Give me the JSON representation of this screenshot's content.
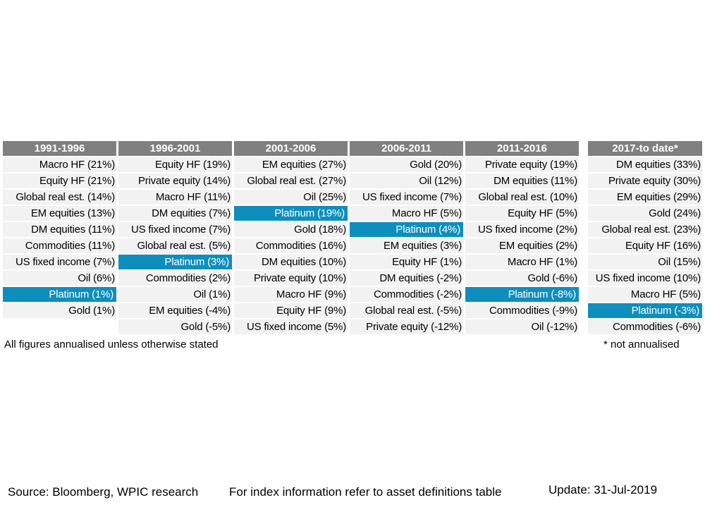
{
  "chart_data": {
    "type": "table",
    "highlight_color": "#0e8ebd",
    "header_color": "#808080",
    "cell_color": "#f2f2f2",
    "highlight_item": "Platinum",
    "columns": [
      {
        "header": "1991-1996",
        "cells": [
          "Macro HF (21%)",
          "Equity HF (21%)",
          "Global real est. (14%)",
          "EM equities (13%)",
          "DM equities (11%)",
          "Commodities (11%)",
          "US fixed income (7%)",
          "Oil (6%)",
          "Platinum (1%)",
          "Gold (1%)"
        ]
      },
      {
        "header": "1996-2001",
        "cells": [
          "Equity HF (19%)",
          "Private equity (14%)",
          "Macro HF (11%)",
          "DM equities (7%)",
          "US fixed income (7%)",
          "Global real est. (5%)",
          "Platinum (3%)",
          "Commodities (2%)",
          "Oil (1%)",
          "EM equities (-4%)",
          "Gold (-5%)"
        ]
      },
      {
        "header": "2001-2006",
        "cells": [
          "EM equities (27%)",
          "Global real est. (27%)",
          "Oil (25%)",
          "Platinum (19%)",
          "Gold (18%)",
          "Commodities (16%)",
          "DM equities (10%)",
          "Private equity (10%)",
          "Macro HF (9%)",
          "Equity HF (9%)",
          "US fixed income (5%)"
        ]
      },
      {
        "header": "2006-2011",
        "cells": [
          "Gold (20%)",
          "Oil (12%)",
          "US fixed income (7%)",
          "Macro HF (5%)",
          "Platinum (4%)",
          "EM equities (3%)",
          "Equity HF (1%)",
          "DM equities (-2%)",
          "Commodities (-2%)",
          "Global real est. (-5%)",
          "Private equity (-12%)"
        ]
      },
      {
        "header": "2011-2016",
        "cells": [
          "Private equity (19%)",
          "DM equities (11%)",
          "Global real est. (10%)",
          "Equity HF (5%)",
          "US fixed income (2%)",
          "EM equities (2%)",
          "Macro HF (1%)",
          "Gold (-6%)",
          "Platinum (-8%)",
          "Commodities (-9%)",
          "Oil (-12%)"
        ]
      },
      {
        "header": "2017-to date*",
        "cells": [
          "DM equities (33%)",
          "Private equity (30%)",
          "EM equities (29%)",
          "Gold (24%)",
          "Global real est. (23%)",
          "Equity HF (16%)",
          "Oil (15%)",
          "US fixed income (10%)",
          "Macro HF (5%)",
          "Platinum (-3%)",
          "Commodities (-6%)"
        ]
      }
    ]
  },
  "notes": {
    "annualised": "All figures annualised unless otherwise stated",
    "not_annualised": "* not annualised"
  },
  "footer": {
    "source": "Source: Bloomberg, WPIC research",
    "index_info": "For index information refer to asset definitions table",
    "update": "Update: 31-Jul-2019"
  }
}
